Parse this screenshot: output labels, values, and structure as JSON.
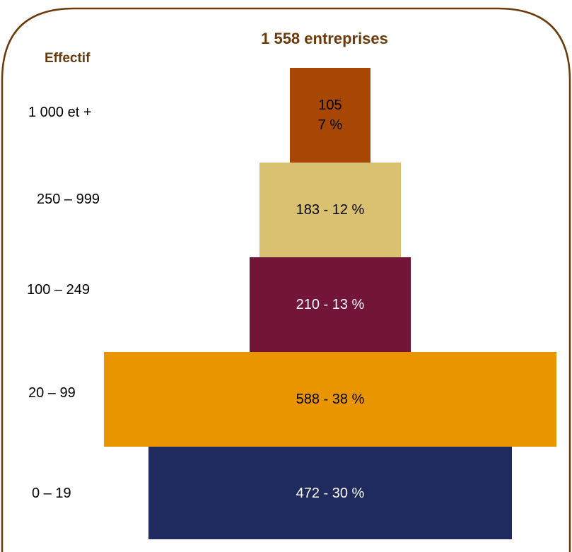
{
  "chart_data": {
    "type": "bar",
    "orientation": "horizontal",
    "style": "pyramid",
    "title": "1 558 entreprises",
    "axis_title": "Effectif",
    "categories": [
      "1 000 et +",
      "250 – 999",
      "100 – 249",
      "20 – 99",
      "0 – 19"
    ],
    "values": [
      105,
      183,
      210,
      588,
      472
    ],
    "percents": [
      7,
      12,
      13,
      38,
      30
    ],
    "bar_labels": [
      [
        "105",
        "7 %"
      ],
      [
        "183 - 12 %"
      ],
      [
        "210 - 13 %"
      ],
      [
        "588 - 38 %"
      ],
      [
        "472 - 30 %"
      ]
    ],
    "colors": [
      "#A84604",
      "#DAC172",
      "#721539",
      "#E89500",
      "#1F2A5E"
    ],
    "label_colors": [
      "#000000",
      "#000000",
      "#ffffff",
      "#000000",
      "#ffffff"
    ],
    "title_color": "#6B3A0B",
    "frame_color": "#6B3A0B"
  }
}
